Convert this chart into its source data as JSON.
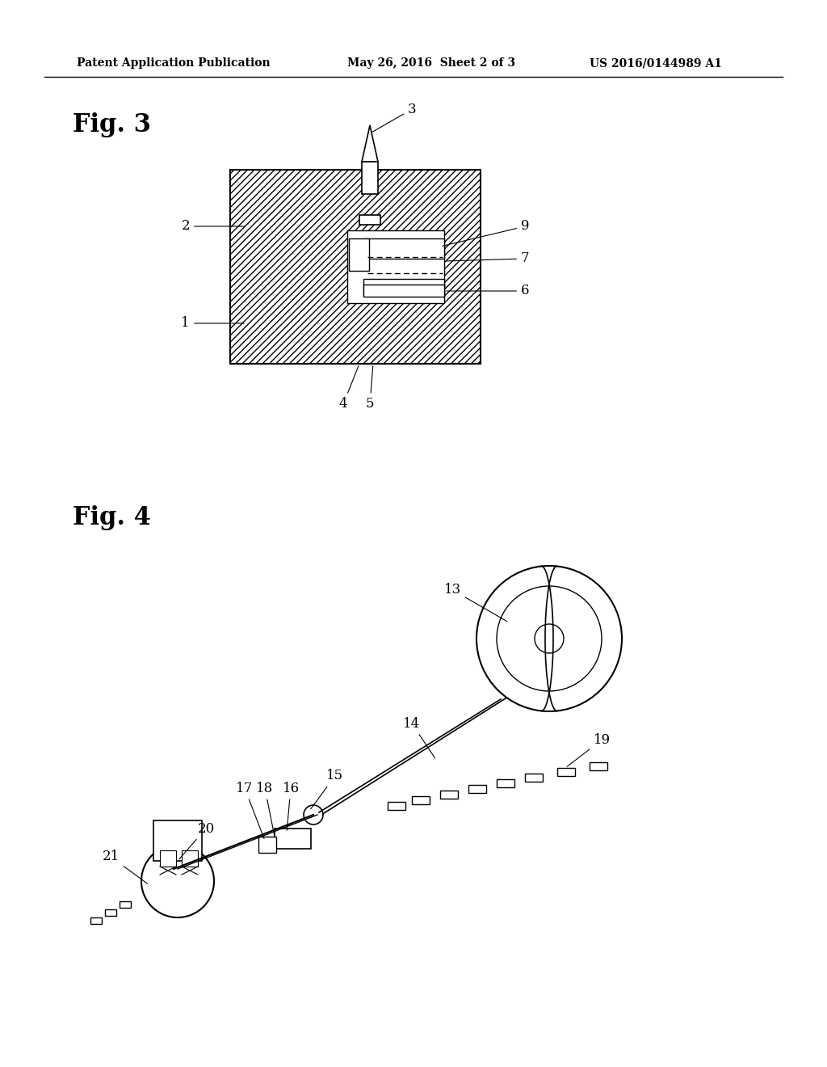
{
  "background_color": "#ffffff",
  "header_left": "Patent Application Publication",
  "header_mid": "May 26, 2016  Sheet 2 of 3",
  "header_right": "US 2016/0144989 A1",
  "fig3_label": "Fig. 3",
  "fig4_label": "Fig. 4"
}
